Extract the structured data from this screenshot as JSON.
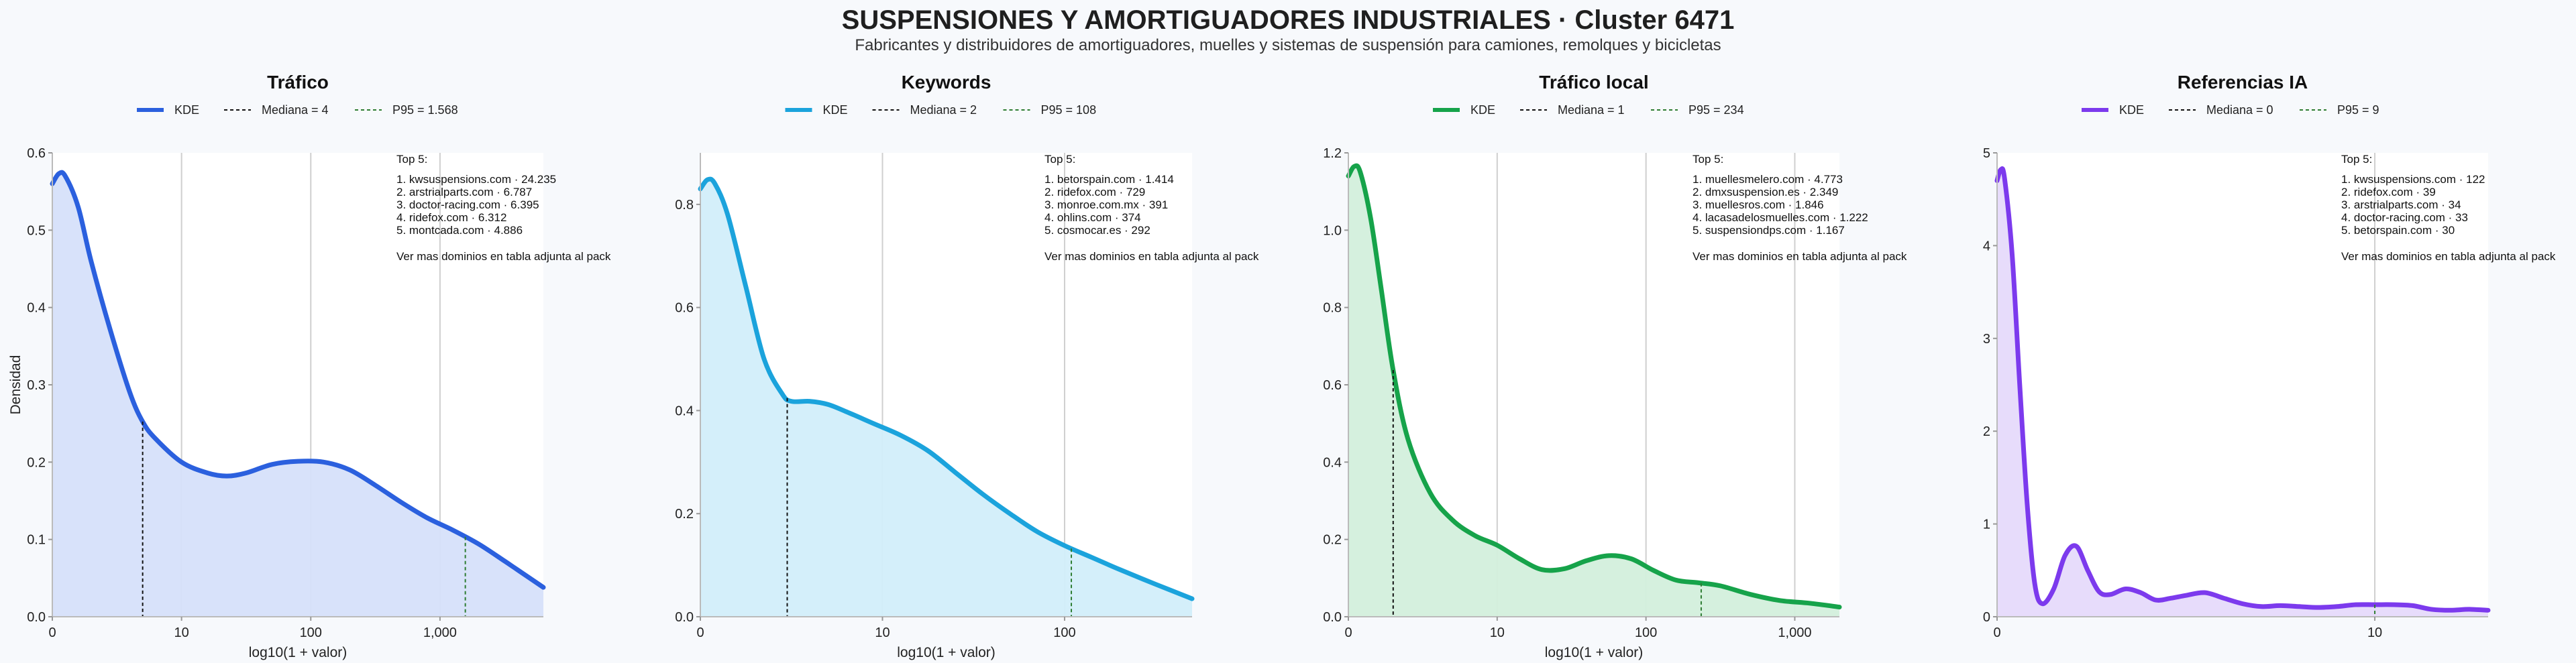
{
  "header": {
    "title": "SUSPENSIONES Y AMORTIGUADORES INDUSTRIALES · Cluster 6471",
    "subtitle": "Fabricantes y distribuidores de amortiguadores, muelles y sistemas de suspensión para camiones, remolques y bicicletas"
  },
  "chart_data": [
    {
      "type": "area",
      "title": "Tráfico",
      "xlabel": "log10(1 + valor)",
      "ylabel": "Densidad",
      "xlim": [
        0,
        3.8
      ],
      "ylim": [
        0,
        0.6
      ],
      "x_ticks": [
        0,
        1,
        2,
        3
      ],
      "x_tick_labels": [
        "0",
        "10",
        "100",
        "1,000"
      ],
      "y_ticks": [
        0,
        0.1,
        0.2,
        0.3,
        0.4,
        0.5,
        0.6
      ],
      "y_tick_labels": [
        "0.0",
        "0.1",
        "0.2",
        "0.3",
        "0.4",
        "0.5",
        "0.6"
      ],
      "color": "#2b60de",
      "fill": "#d6e0fa",
      "grid": "vertical",
      "legend": {
        "placement": "top",
        "kde_label": "KDE",
        "median_label": "Mediana = 4",
        "p95_label": "P95 = 1.568"
      },
      "median": 0.699,
      "p95": 3.196,
      "series": [
        {
          "x": [
            0,
            0.05,
            0.1,
            0.2,
            0.3,
            0.45,
            0.6,
            0.7,
            0.8,
            1.0,
            1.2,
            1.35,
            1.5,
            1.7,
            1.9,
            2.1,
            2.3,
            2.5,
            2.7,
            2.9,
            3.1,
            3.3,
            3.5,
            3.65,
            3.8
          ],
          "y": [
            0.56,
            0.573,
            0.57,
            0.53,
            0.46,
            0.37,
            0.29,
            0.252,
            0.23,
            0.2,
            0.186,
            0.182,
            0.186,
            0.197,
            0.201,
            0.2,
            0.19,
            0.17,
            0.148,
            0.128,
            0.112,
            0.094,
            0.072,
            0.055,
            0.038
          ]
        }
      ],
      "top": {
        "heading": "Top 5:",
        "items": [
          "1. kwsuspensions.com · 24.235",
          "2. arstrialparts.com · 6.787",
          "3. doctor-racing.com · 6.395",
          "4. ridefox.com · 6.312",
          "5. montcada.com · 4.886"
        ],
        "footer": "Ver mas dominios en tabla adjunta al pack"
      }
    },
    {
      "type": "area",
      "title": "Keywords",
      "xlabel": "log10(1 + valor)",
      "xlim": [
        0,
        2.7
      ],
      "ylim": [
        0,
        0.9
      ],
      "x_ticks": [
        0,
        1,
        2
      ],
      "x_tick_labels": [
        "0",
        "10",
        "100"
      ],
      "y_ticks": [
        0,
        0.2,
        0.4,
        0.6,
        0.8
      ],
      "y_tick_labels": [
        "0.0",
        "0.2",
        "0.4",
        "0.6",
        "0.8"
      ],
      "color": "#1ba3dc",
      "fill": "#d2eefa",
      "grid": "vertical",
      "legend": {
        "placement": "top",
        "kde_label": "KDE",
        "median_label": "Mediana = 2",
        "p95_label": "P95 = 108"
      },
      "median": 0.477,
      "p95": 2.037,
      "series": [
        {
          "x": [
            0,
            0.04,
            0.08,
            0.15,
            0.25,
            0.35,
            0.45,
            0.5,
            0.6,
            0.7,
            0.8,
            0.95,
            1.1,
            1.25,
            1.4,
            1.55,
            1.7,
            1.85,
            2.0,
            2.15,
            2.3,
            2.5,
            2.7
          ],
          "y": [
            0.83,
            0.848,
            0.84,
            0.78,
            0.64,
            0.5,
            0.432,
            0.418,
            0.418,
            0.412,
            0.398,
            0.375,
            0.352,
            0.322,
            0.28,
            0.238,
            0.2,
            0.165,
            0.138,
            0.115,
            0.092,
            0.063,
            0.035
          ]
        }
      ],
      "top": {
        "heading": "Top 5:",
        "items": [
          "1. betorspain.com · 1.414",
          "2. ridefox.com · 729",
          "3. monroe.com.mx · 391",
          "4. ohlins.com · 374",
          "5. cosmocar.es · 292"
        ],
        "footer": "Ver mas dominios en tabla adjunta al pack"
      }
    },
    {
      "type": "area",
      "title": "Tráfico local",
      "xlabel": "log10(1 + valor)",
      "xlim": [
        0,
        3.3
      ],
      "ylim": [
        0,
        1.2
      ],
      "x_ticks": [
        0,
        1,
        2,
        3
      ],
      "x_tick_labels": [
        "0",
        "10",
        "100",
        "1,000"
      ],
      "y_ticks": [
        0,
        0.2,
        0.4,
        0.6,
        0.8,
        1.0,
        1.2
      ],
      "y_tick_labels": [
        "0.0",
        "0.2",
        "0.4",
        "0.6",
        "0.8",
        "1.0",
        "1.2"
      ],
      "color": "#16a34a",
      "fill": "#d3efdc",
      "grid": "vertical",
      "legend": {
        "placement": "top",
        "kde_label": "KDE",
        "median_label": "Mediana = 1",
        "p95_label": "P95 = 234"
      },
      "median": 0.301,
      "p95": 2.371,
      "series": [
        {
          "x": [
            0,
            0.04,
            0.08,
            0.15,
            0.22,
            0.3,
            0.4,
            0.55,
            0.7,
            0.85,
            1.0,
            1.15,
            1.3,
            1.45,
            1.6,
            1.75,
            1.9,
            2.05,
            2.2,
            2.35,
            2.5,
            2.7,
            2.9,
            3.1,
            3.3
          ],
          "y": [
            1.14,
            1.165,
            1.15,
            1.03,
            0.85,
            0.64,
            0.46,
            0.32,
            0.25,
            0.21,
            0.185,
            0.15,
            0.122,
            0.124,
            0.145,
            0.158,
            0.15,
            0.12,
            0.095,
            0.088,
            0.08,
            0.058,
            0.042,
            0.035,
            0.025
          ]
        }
      ],
      "top": {
        "heading": "Top 5:",
        "items": [
          "1. muellesmelero.com · 4.773",
          "2. dmxsuspension.es · 2.349",
          "3. muellesros.com · 1.846",
          "4. lacasadelosmuelles.com · 1.222",
          "5. suspensiondps.com · 1.167"
        ],
        "footer": "Ver mas dominios en tabla adjunta al pack"
      }
    },
    {
      "type": "area",
      "title": "Referencias IA",
      "xlabel": "",
      "xlim": [
        0,
        1.3
      ],
      "ylim": [
        0,
        5
      ],
      "x_ticks": [
        0,
        1
      ],
      "x_tick_labels": [
        "0",
        "10"
      ],
      "y_ticks": [
        0,
        1,
        2,
        3,
        4,
        5
      ],
      "y_tick_labels": [
        "0",
        "1",
        "2",
        "3",
        "4",
        "5"
      ],
      "color": "#7c3aed",
      "fill": "#e6dafb",
      "grid": "vertical",
      "legend": {
        "placement": "top",
        "kde_label": "KDE",
        "median_label": "Mediana = 0",
        "p95_label": "P95 = 9"
      },
      "median": 0,
      "p95": 1.0,
      "series": [
        {
          "x": [
            0,
            0.01,
            0.02,
            0.04,
            0.06,
            0.08,
            0.1,
            0.12,
            0.15,
            0.18,
            0.21,
            0.24,
            0.27,
            0.3,
            0.34,
            0.38,
            0.42,
            0.46,
            0.5,
            0.55,
            0.6,
            0.65,
            0.7,
            0.75,
            0.8,
            0.85,
            0.9,
            0.95,
            1.0,
            1.05,
            1.1,
            1.15,
            1.2,
            1.25,
            1.3
          ],
          "y": [
            4.7,
            4.82,
            4.72,
            3.9,
            2.5,
            1.2,
            0.35,
            0.14,
            0.3,
            0.66,
            0.76,
            0.5,
            0.27,
            0.24,
            0.3,
            0.26,
            0.18,
            0.2,
            0.23,
            0.26,
            0.2,
            0.14,
            0.11,
            0.12,
            0.11,
            0.1,
            0.11,
            0.13,
            0.13,
            0.13,
            0.12,
            0.08,
            0.07,
            0.08,
            0.07
          ]
        }
      ],
      "top": {
        "heading": "Top 5:",
        "items": [
          "1. kwsuspensions.com · 122",
          "2. ridefox.com · 39",
          "3. arstrialparts.com · 34",
          "4. doctor-racing.com · 33",
          "5. betorspain.com · 30"
        ],
        "footer": "Ver mas dominios en tabla adjunta al pack"
      }
    }
  ]
}
